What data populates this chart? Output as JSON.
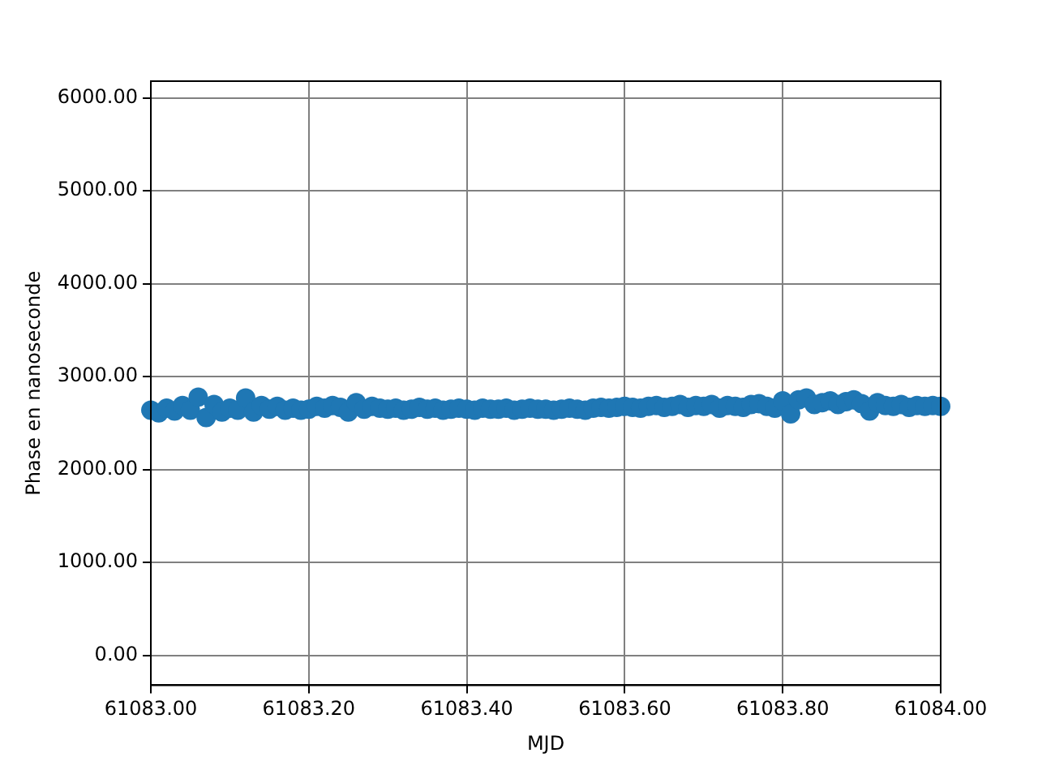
{
  "chart_data": {
    "type": "scatter",
    "xlabel": "MJD",
    "ylabel": "Phase en nanoseconde",
    "marker": "circle",
    "grid": true,
    "legend": false,
    "xlim": [
      61083,
      61084
    ],
    "xticks": [
      {
        "value": 61083,
        "label": "61083.00"
      },
      {
        "value": 61083.2,
        "label": "61083.20"
      },
      {
        "value": 61083.4,
        "label": "61083.40"
      },
      {
        "value": 61083.6,
        "label": "61083.60"
      },
      {
        "value": 61083.8,
        "label": "61083.80"
      },
      {
        "value": 61084,
        "label": "61084.00"
      }
    ],
    "ylim": [
      -320,
      6180
    ],
    "yticks": [
      {
        "value": 0,
        "label": "0.00"
      },
      {
        "value": 1000,
        "label": "1000.00"
      },
      {
        "value": 2000,
        "label": "2000.00"
      },
      {
        "value": 3000,
        "label": "3000.00"
      },
      {
        "value": 4000,
        "label": "4000.00"
      },
      {
        "value": 5000,
        "label": "5000.00"
      },
      {
        "value": 6000,
        "label": "6000.00"
      }
    ],
    "series": [
      {
        "color": "#1f77b4",
        "x": [
          61083,
          61083.01,
          61083.02,
          61083.03,
          61083.04,
          61083.05,
          61083.06,
          61083.07,
          61083.08,
          61083.09,
          61083.1,
          61083.11,
          61083.12,
          61083.13,
          61083.14,
          61083.15,
          61083.16,
          61083.17,
          61083.18,
          61083.19,
          61083.2,
          61083.21,
          61083.22,
          61083.23,
          61083.24,
          61083.25,
          61083.26,
          61083.27,
          61083.28,
          61083.29,
          61083.3,
          61083.31,
          61083.32,
          61083.33,
          61083.34,
          61083.35,
          61083.36,
          61083.37,
          61083.38,
          61083.39,
          61083.4,
          61083.41,
          61083.42,
          61083.43,
          61083.44,
          61083.45,
          61083.46,
          61083.47,
          61083.48,
          61083.49,
          61083.5,
          61083.51,
          61083.52,
          61083.53,
          61083.54,
          61083.55,
          61083.56,
          61083.57,
          61083.58,
          61083.59,
          61083.6,
          61083.61,
          61083.62,
          61083.63,
          61083.64,
          61083.65,
          61083.66,
          61083.67,
          61083.68,
          61083.69,
          61083.7,
          61083.71,
          61083.72,
          61083.73,
          61083.74,
          61083.75,
          61083.76,
          61083.77,
          61083.78,
          61083.79,
          61083.8,
          61083.81,
          61083.82,
          61083.83,
          61083.84,
          61083.85,
          61083.86,
          61083.87,
          61083.88,
          61083.89,
          61083.9,
          61083.91,
          61083.92,
          61083.93,
          61083.94,
          61083.95,
          61083.96,
          61083.97,
          61083.98,
          61083.99,
          61084
        ],
        "values": [
          2640,
          2610,
          2660,
          2630,
          2690,
          2640,
          2780,
          2560,
          2700,
          2620,
          2660,
          2640,
          2770,
          2620,
          2690,
          2650,
          2680,
          2640,
          2660,
          2640,
          2650,
          2680,
          2660,
          2690,
          2670,
          2620,
          2720,
          2650,
          2680,
          2660,
          2650,
          2660,
          2640,
          2650,
          2670,
          2650,
          2660,
          2640,
          2650,
          2660,
          2650,
          2640,
          2660,
          2650,
          2650,
          2660,
          2640,
          2650,
          2660,
          2650,
          2650,
          2640,
          2650,
          2660,
          2650,
          2640,
          2660,
          2670,
          2660,
          2670,
          2680,
          2670,
          2660,
          2680,
          2690,
          2670,
          2680,
          2700,
          2670,
          2690,
          2680,
          2700,
          2660,
          2690,
          2680,
          2670,
          2700,
          2710,
          2680,
          2660,
          2740,
          2600,
          2750,
          2770,
          2700,
          2720,
          2740,
          2700,
          2730,
          2750,
          2710,
          2630,
          2720,
          2690,
          2680,
          2700,
          2670,
          2690,
          2680,
          2690,
          2680
        ]
      }
    ]
  }
}
